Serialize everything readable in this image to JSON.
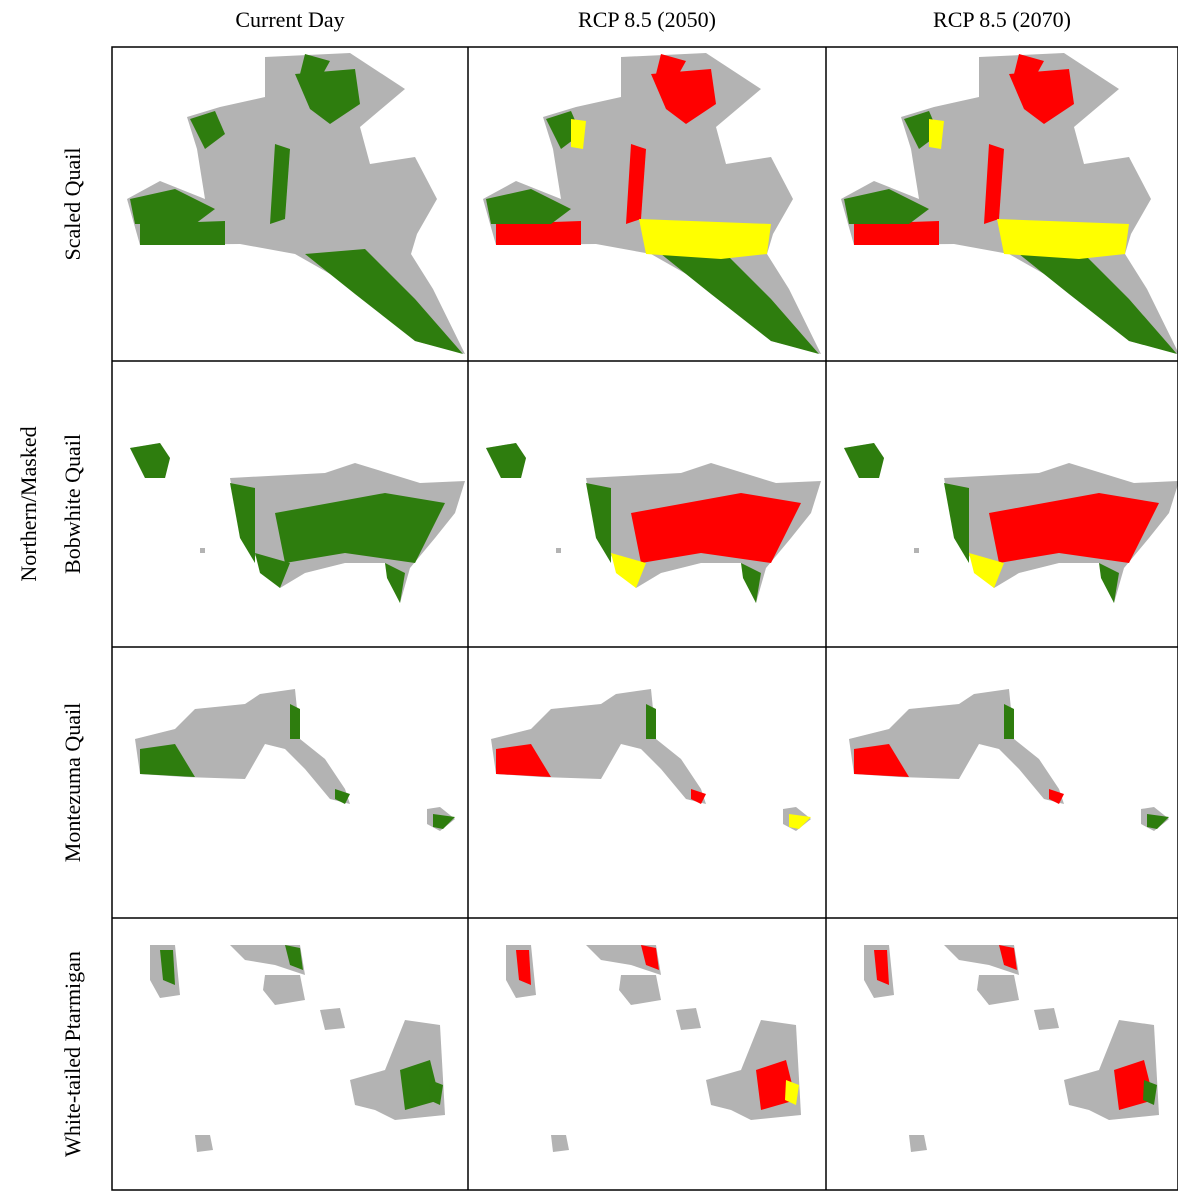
{
  "columns": [
    "Current Day",
    "RCP 8.5 (2050)",
    "RCP 8.5 (2070)"
  ],
  "rows": [
    [
      "Scaled Quail"
    ],
    [
      "Northern/Masked",
      "Bobwhite Quail"
    ],
    [
      "Montezuma Quail"
    ],
    [
      "White-tailed Ptarmigan"
    ]
  ]
}
